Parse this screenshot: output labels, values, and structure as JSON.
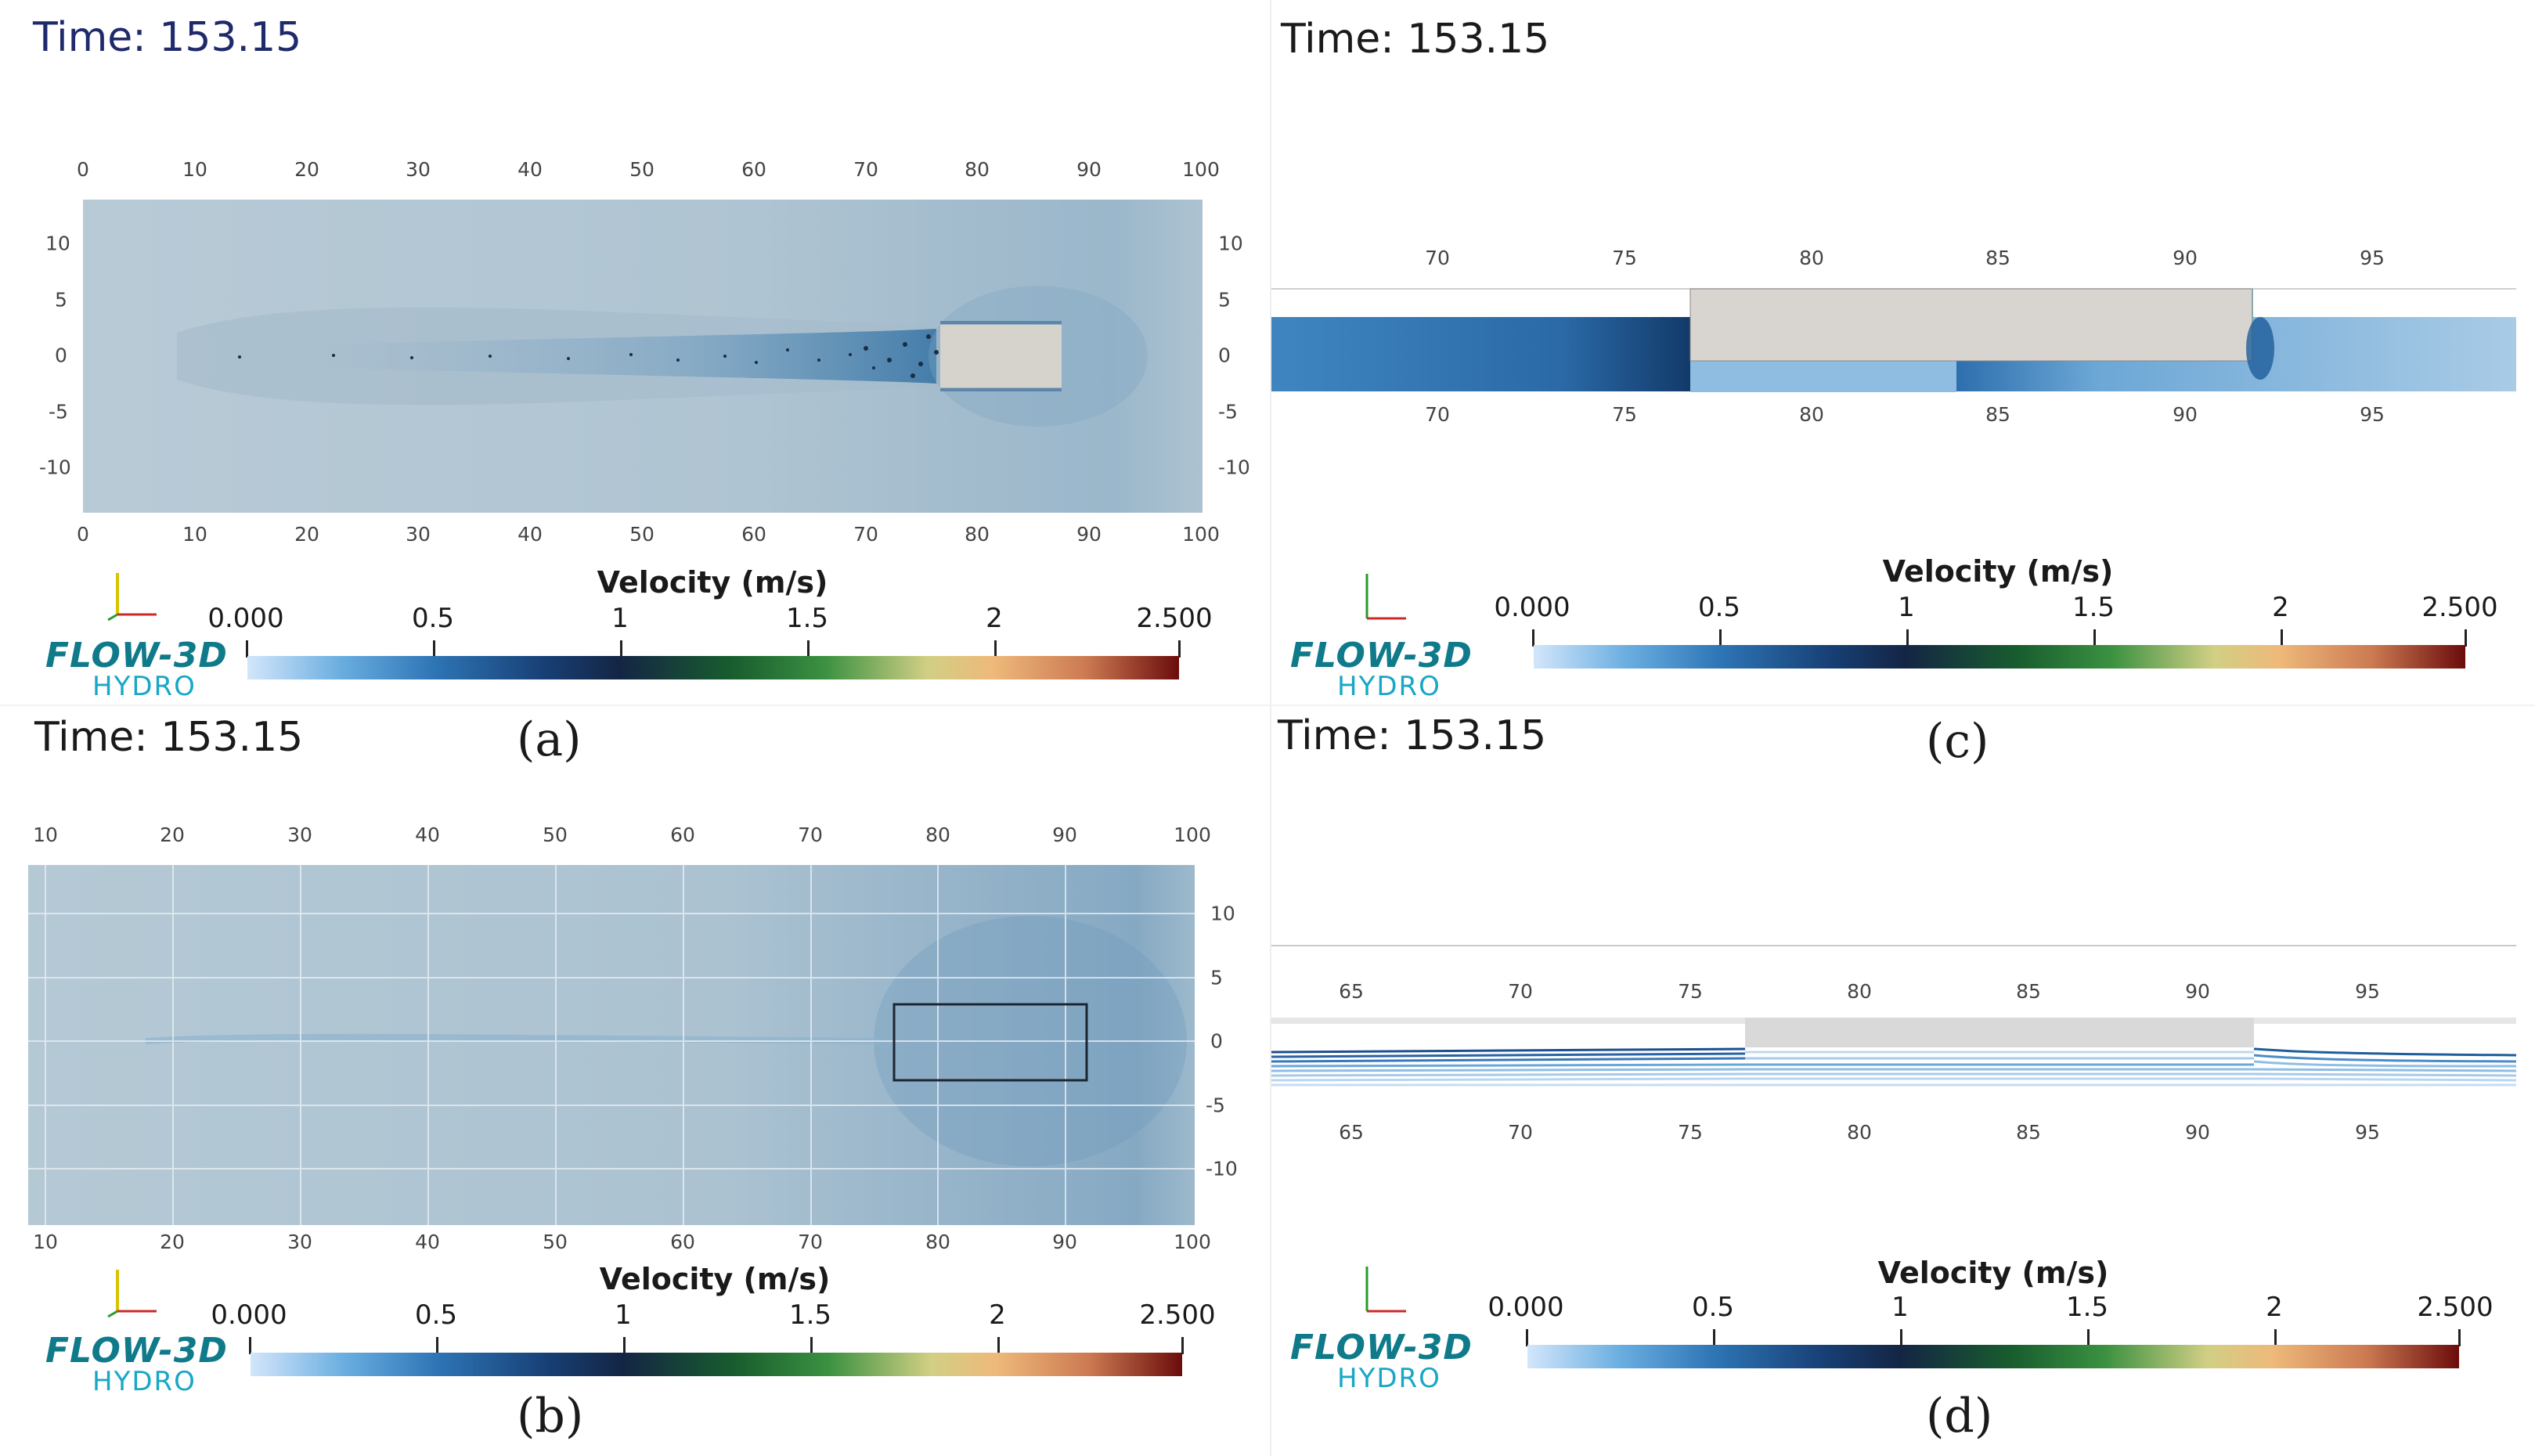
{
  "time_label": "Time: 153.15",
  "velocity_label": "Velocity (m/s)",
  "colorbar_ticks": [
    "0.000",
    "0.5",
    "1",
    "1.5",
    "2",
    "2.500"
  ],
  "logo": {
    "line1": "FLOW-3D",
    "line2": "HYDRO"
  },
  "panels": {
    "a": {
      "caption": "(a)",
      "x_ticks": [
        "0",
        "10",
        "20",
        "30",
        "40",
        "50",
        "60",
        "70",
        "80",
        "90",
        "100"
      ],
      "y_ticks": [
        "10",
        "5",
        "0",
        "-5",
        "-10"
      ]
    },
    "b": {
      "caption": "(b)",
      "x_ticks": [
        "10",
        "20",
        "30",
        "40",
        "50",
        "60",
        "70",
        "80",
        "90",
        "100"
      ],
      "y_ticks": [
        "10",
        "5",
        "0",
        "-5",
        "-10"
      ]
    },
    "c": {
      "caption": "(c)",
      "x_ticks": [
        "70",
        "75",
        "80",
        "85",
        "90",
        "95"
      ]
    },
    "d": {
      "caption": "(d)",
      "x_ticks": [
        "65",
        "70",
        "75",
        "80",
        "85",
        "90",
        "95"
      ]
    }
  },
  "colors": {
    "time_a": "#1f2a6b",
    "text": "#1a1a1a",
    "logo_dark": "#0f7a8a",
    "logo_light": "#18a7c7"
  }
}
